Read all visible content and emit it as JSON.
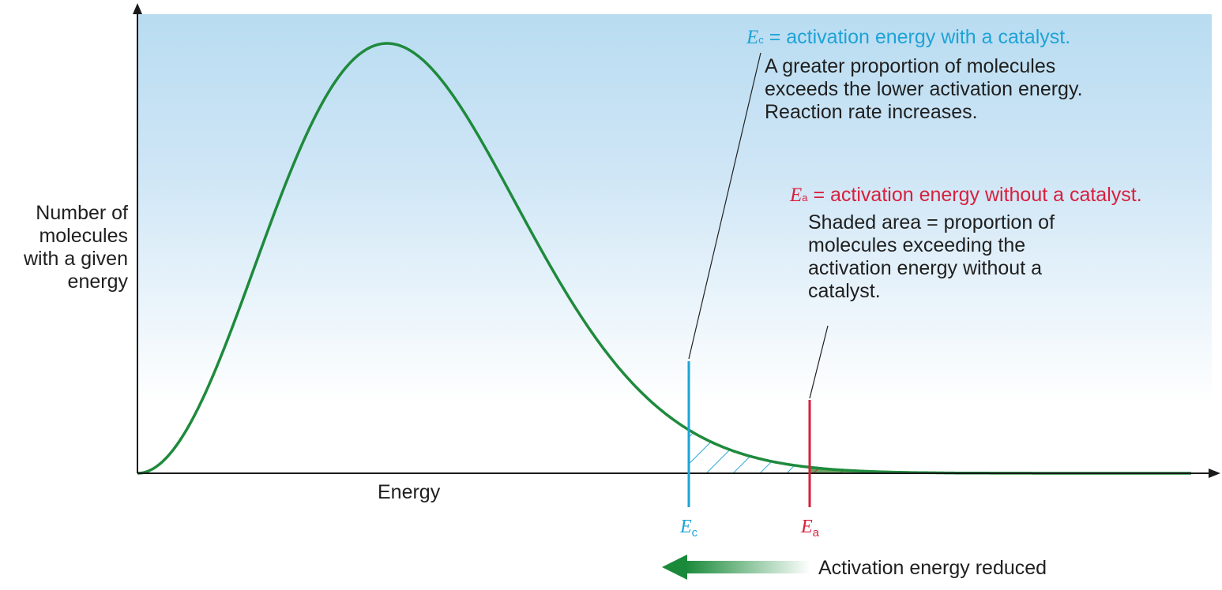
{
  "axes": {
    "y_label_lines": [
      "Number of",
      "molecules",
      "with a given",
      "energy"
    ],
    "x_label": "Energy"
  },
  "catalyst": {
    "symbol": "E",
    "subscript": "c",
    "title_rest": " = activation energy with a catalyst.",
    "body_lines": [
      "A greater proportion of molecules",
      "exceeds the lower activation energy.",
      "Reaction rate increases."
    ],
    "color": "#1ea3d6"
  },
  "no_catalyst": {
    "symbol": "E",
    "subscript": "a",
    "title_rest": " = activation energy without a catalyst.",
    "body_lines": [
      "Shaded area = proportion of",
      "molecules exceeding the",
      "activation energy without a",
      "catalyst."
    ],
    "color": "#d81f3c"
  },
  "reduction_label": "Activation energy reduced",
  "colors": {
    "curve": "#1e8a3c",
    "shade_fill": "#6aa361",
    "arrow": "#1a8a3a",
    "background_top": "#b9dcf1"
  }
}
